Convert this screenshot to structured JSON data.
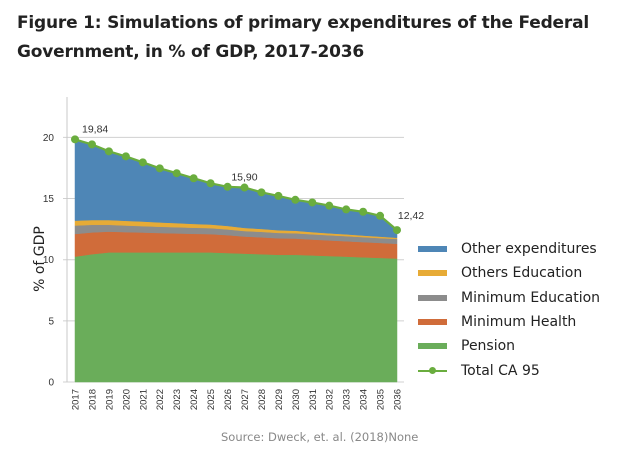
{
  "title": "Figure 1: Simulations of primary expenditures of the Federal Government, in % of GDP, 2017-2036",
  "source": "Source: Dweck, et. al. (2018)None",
  "chart_data": {
    "type": "area",
    "stacked": true,
    "title": "Figure 1: Simulations of primary expenditures of the Federal Government, in % of GDP, 2017-2036",
    "xlabel": "",
    "ylabel": "% of GDP",
    "ylim": [
      0,
      23.3
    ],
    "yticks": [
      0,
      5,
      10,
      15,
      20
    ],
    "grid": true,
    "legend_position": "right",
    "categories": [
      "2017",
      "2018",
      "2019",
      "2020",
      "2021",
      "2022",
      "2023",
      "2024",
      "2025",
      "2026",
      "2027",
      "2028",
      "2029",
      "2030",
      "2031",
      "2032",
      "2033",
      "2034",
      "2035",
      "2036"
    ],
    "series": [
      {
        "name": "Pension",
        "color": "#6aad5a",
        "values": [
          10.25,
          10.45,
          10.6,
          10.6,
          10.6,
          10.6,
          10.6,
          10.6,
          10.6,
          10.55,
          10.5,
          10.45,
          10.4,
          10.4,
          10.35,
          10.3,
          10.25,
          10.2,
          10.15,
          10.1
        ]
      },
      {
        "name": "Minimum Health",
        "color": "#d06c3a",
        "values": [
          1.85,
          1.78,
          1.7,
          1.66,
          1.62,
          1.58,
          1.55,
          1.52,
          1.49,
          1.46,
          1.4,
          1.38,
          1.35,
          1.33,
          1.3,
          1.28,
          1.26,
          1.24,
          1.22,
          1.2
        ]
      },
      {
        "name": "Minimum Education",
        "color": "#8c8c8c",
        "values": [
          0.7,
          0.62,
          0.55,
          0.54,
          0.53,
          0.52,
          0.51,
          0.5,
          0.49,
          0.47,
          0.45,
          0.45,
          0.44,
          0.44,
          0.43,
          0.42,
          0.42,
          0.41,
          0.4,
          0.4
        ]
      },
      {
        "name": "Others Education",
        "color": "#e7ab36",
        "values": [
          0.4,
          0.4,
          0.4,
          0.38,
          0.37,
          0.35,
          0.33,
          0.31,
          0.3,
          0.28,
          0.25,
          0.24,
          0.22,
          0.2,
          0.18,
          0.16,
          0.15,
          0.13,
          0.12,
          0.1
        ]
      },
      {
        "name": "Other expenditures",
        "color": "#4e86b6",
        "values": [
          6.64,
          6.18,
          5.61,
          5.27,
          4.84,
          4.42,
          4.08,
          3.73,
          3.37,
          3.2,
          3.3,
          2.99,
          2.81,
          2.53,
          2.42,
          2.26,
          2.03,
          1.94,
          1.7,
          0.62
        ]
      }
    ],
    "total_series": {
      "name": "Total CA 95",
      "color": "#6aad3e",
      "values": [
        19.84,
        19.43,
        18.86,
        18.45,
        17.96,
        17.47,
        17.07,
        16.66,
        16.25,
        15.96,
        15.9,
        15.51,
        15.22,
        14.9,
        14.68,
        14.42,
        14.11,
        13.92,
        13.59,
        12.42
      ]
    },
    "annotations": [
      {
        "category": "2017",
        "text": "19,84"
      },
      {
        "category": "2027",
        "text": "15,90"
      },
      {
        "category": "2036",
        "text": "12,42"
      }
    ]
  },
  "legend": [
    {
      "label": "Other expenditures",
      "color": "#4e86b6",
      "kind": "area"
    },
    {
      "label": "Others Education",
      "color": "#e7ab36",
      "kind": "area"
    },
    {
      "label": "Minimum Education",
      "color": "#8c8c8c",
      "kind": "area"
    },
    {
      "label": "Minimum Health",
      "color": "#d06c3a",
      "kind": "area"
    },
    {
      "label": "Pension",
      "color": "#6aad5a",
      "kind": "area"
    },
    {
      "label": "Total CA 95",
      "color": "#6aad3e",
      "kind": "line-marker"
    }
  ]
}
